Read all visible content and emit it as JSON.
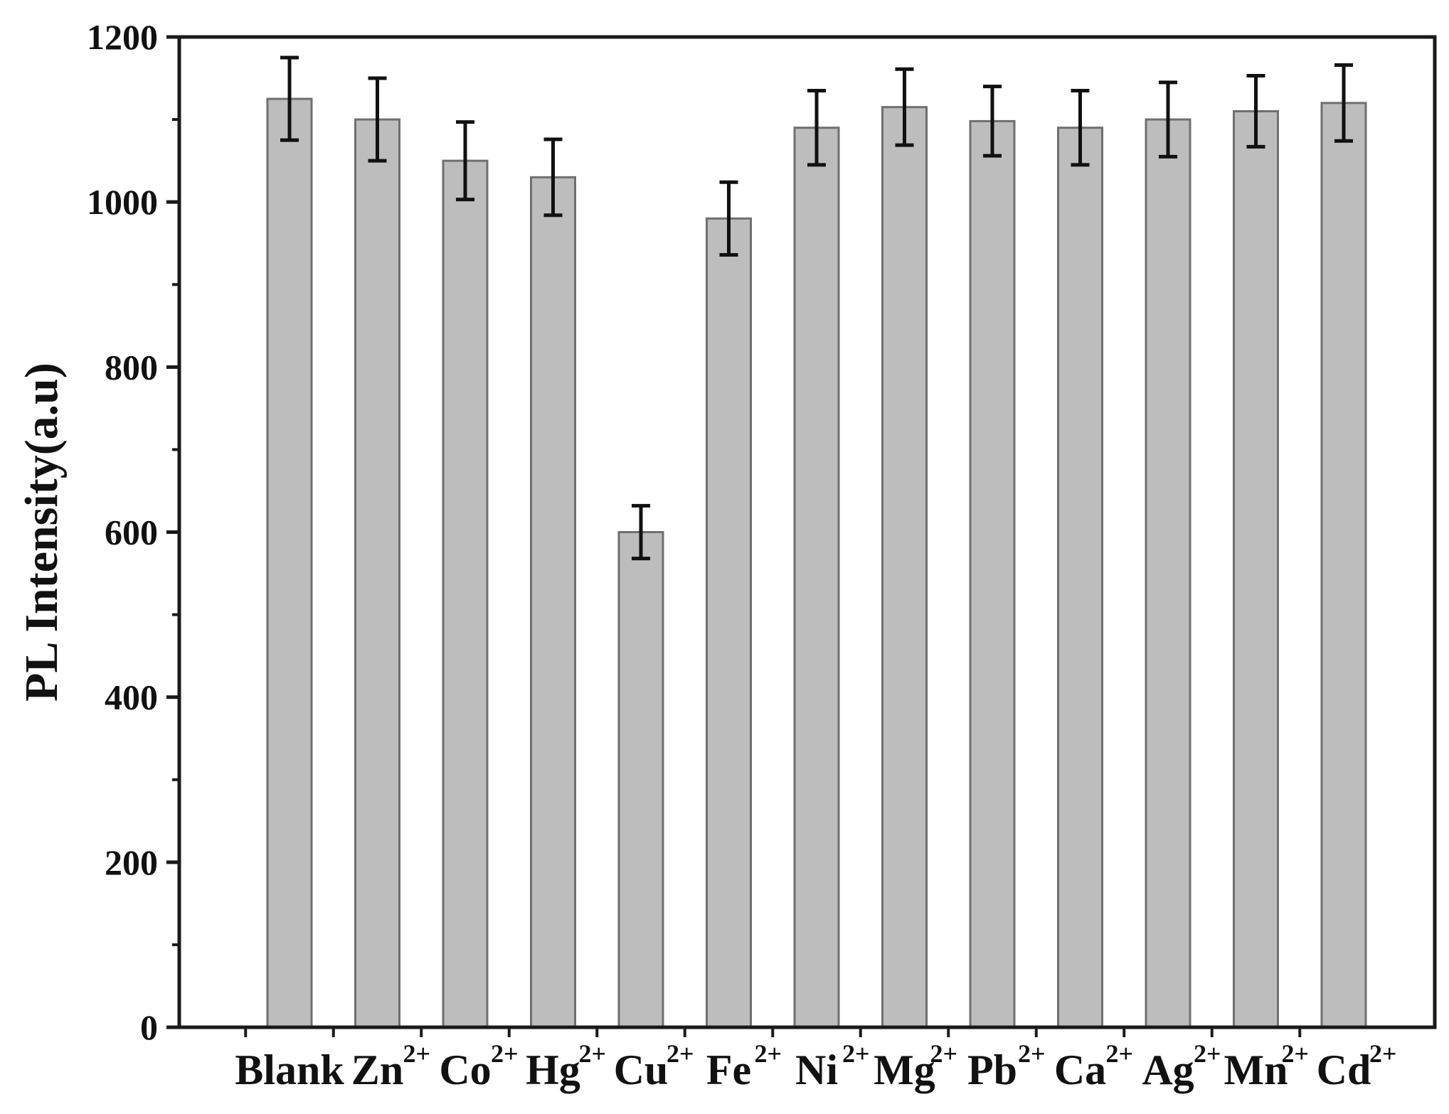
{
  "chart_data": {
    "type": "bar",
    "title": "",
    "xlabel": "",
    "ylabel": "PL Intensity(a.u)",
    "ylim": [
      0,
      1200
    ],
    "yticks": [
      0,
      200,
      400,
      600,
      800,
      1000,
      1200
    ],
    "grid": false,
    "categories": [
      {
        "base": "Blank",
        "sup": ""
      },
      {
        "base": "Zn",
        "sup": "2+"
      },
      {
        "base": "Co",
        "sup": "2+"
      },
      {
        "base": "Hg",
        "sup": "2+"
      },
      {
        "base": "Cu",
        "sup": "2+"
      },
      {
        "base": "Fe",
        "sup": "2+"
      },
      {
        "base": "Ni",
        "sup": "2+"
      },
      {
        "base": "Mg",
        "sup": "2+"
      },
      {
        "base": "Pb",
        "sup": "2+"
      },
      {
        "base": "Ca",
        "sup": "2+"
      },
      {
        "base": "Ag",
        "sup": "2+"
      },
      {
        "base": "Mn",
        "sup": "2+"
      },
      {
        "base": "Cd",
        "sup": "2+"
      }
    ],
    "values": [
      1125,
      1100,
      1050,
      1030,
      600,
      980,
      1090,
      1115,
      1098,
      1090,
      1100,
      1110,
      1120
    ],
    "errors": [
      50,
      50,
      47,
      46,
      32,
      44,
      45,
      46,
      42,
      45,
      45,
      43,
      46
    ],
    "colors": {
      "bar_fill": "#bdbdbd",
      "bar_stroke": "#6f6f6f",
      "axis": "#1a1a1a",
      "error_bar": "#111111"
    }
  }
}
